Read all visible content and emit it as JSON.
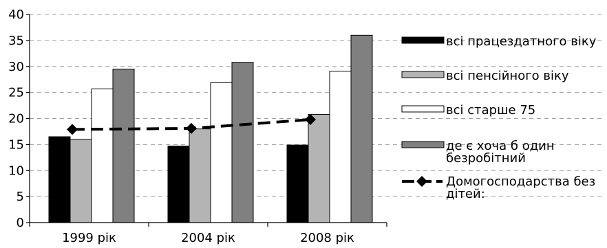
{
  "chart_data": {
    "type": "bar",
    "categories": [
      "1999 рік",
      "2004 рік",
      "2008 рік"
    ],
    "ylim": [
      0,
      40
    ],
    "yticks": [
      0,
      5,
      10,
      15,
      20,
      25,
      30,
      35,
      40
    ],
    "grid": "horizontal dashed",
    "legend_position": "right",
    "series": [
      {
        "name": "всі працездатного віку",
        "kind": "bar",
        "color": "#000000",
        "values": [
          16.5,
          14.7,
          14.9
        ]
      },
      {
        "name": "всі пенсійного віку",
        "kind": "bar",
        "color": "#b4b4b4",
        "values": [
          16.0,
          18.0,
          20.8
        ]
      },
      {
        "name": "всі старше 75",
        "kind": "bar",
        "color": "#ffffff",
        "values": [
          25.7,
          26.9,
          29.1
        ]
      },
      {
        "name": [
          "де є хоча б один",
          "безробітний"
        ],
        "kind": "bar",
        "color": "#808080",
        "values": [
          29.5,
          30.8,
          36.0
        ]
      },
      {
        "name": [
          "Домогосподарства без",
          "дітей:"
        ],
        "kind": "line",
        "color": "#000000",
        "marker": "diamond",
        "line_style": "dashed",
        "values": [
          17.9,
          18.1,
          19.8
        ]
      }
    ]
  }
}
